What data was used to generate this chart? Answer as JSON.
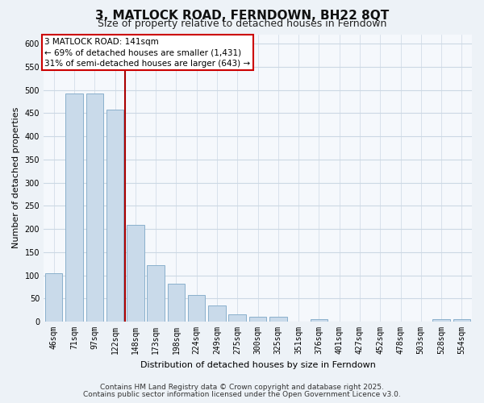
{
  "title": "3, MATLOCK ROAD, FERNDOWN, BH22 8QT",
  "subtitle": "Size of property relative to detached houses in Ferndown",
  "xlabel": "Distribution of detached houses by size in Ferndown",
  "ylabel": "Number of detached properties",
  "categories": [
    "46sqm",
    "71sqm",
    "97sqm",
    "122sqm",
    "148sqm",
    "173sqm",
    "198sqm",
    "224sqm",
    "249sqm",
    "275sqm",
    "300sqm",
    "325sqm",
    "351sqm",
    "376sqm",
    "401sqm",
    "427sqm",
    "452sqm",
    "478sqm",
    "503sqm",
    "528sqm",
    "554sqm"
  ],
  "values": [
    105,
    492,
    492,
    458,
    208,
    122,
    82,
    58,
    35,
    15,
    10,
    10,
    0,
    5,
    0,
    0,
    0,
    0,
    0,
    5,
    5
  ],
  "bar_color": "#c9daea",
  "bar_edge_color": "#8ab0cc",
  "vline_color": "#aa0000",
  "vline_x_index": 3.5,
  "ylim": [
    0,
    620
  ],
  "yticks": [
    0,
    50,
    100,
    150,
    200,
    250,
    300,
    350,
    400,
    450,
    500,
    550,
    600
  ],
  "annotation_title": "3 MATLOCK ROAD: 141sqm",
  "annotation_line1": "← 69% of detached houses are smaller (1,431)",
  "annotation_line2": "31% of semi-detached houses are larger (643) →",
  "annotation_box_facecolor": "#ffffff",
  "annotation_box_edgecolor": "#cc0000",
  "footer_line1": "Contains HM Land Registry data © Crown copyright and database right 2025.",
  "footer_line2": "Contains public sector information licensed under the Open Government Licence v3.0.",
  "fig_facecolor": "#edf2f7",
  "plot_facecolor": "#f5f8fc",
  "grid_color": "#ccd8e4",
  "title_fontsize": 11,
  "subtitle_fontsize": 9,
  "ylabel_fontsize": 8,
  "xlabel_fontsize": 8,
  "tick_fontsize": 7,
  "footer_fontsize": 6.5
}
